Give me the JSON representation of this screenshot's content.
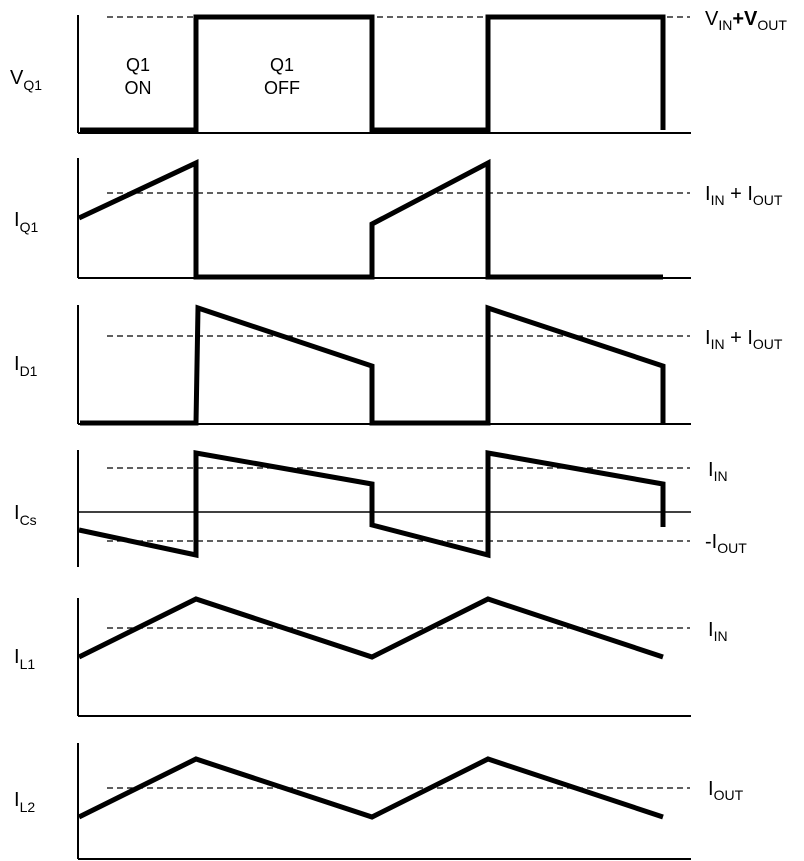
{
  "panels": [
    {
      "id": "vq1",
      "label": "V",
      "sub": "Q1",
      "ref_main": "V",
      "ref_parts": [
        [
          "IN",
          "sub"
        ],
        [
          "+V",
          "main"
        ],
        [
          "OUT",
          "sub"
        ]
      ]
    },
    {
      "id": "iq1",
      "label": "I",
      "sub": "Q1",
      "ref_parts": [
        [
          "IN",
          "sub"
        ],
        [
          " + I",
          "main"
        ],
        [
          "OUT",
          "sub"
        ]
      ]
    },
    {
      "id": "id1",
      "label": "I",
      "sub": "D1",
      "ref_parts": [
        [
          "IN",
          "sub"
        ],
        [
          " + I",
          "main"
        ],
        [
          "OUT",
          "sub"
        ]
      ]
    },
    {
      "id": "ics",
      "label": "I",
      "sub": "Cs",
      "ref_parts": [
        [
          "IN",
          "sub"
        ]
      ],
      "ref2_parts": [
        [
          "OUT",
          "sub"
        ]
      ]
    },
    {
      "id": "il1",
      "label": "I",
      "sub": "L1",
      "ref_parts": [
        [
          "IN",
          "sub"
        ]
      ]
    },
    {
      "id": "il2",
      "label": "I",
      "sub": "L2",
      "ref_parts": [
        [
          "OUT",
          "sub"
        ]
      ]
    }
  ],
  "text": {
    "vq1_main": "V",
    "vq1_sub": "Q1",
    "iq1_main": "I",
    "iq1_sub": "Q1",
    "id1_main": "I",
    "id1_sub": "D1",
    "ics_main": "I",
    "ics_sub": "Cs",
    "il1_main": "I",
    "il1_sub": "L1",
    "il2_main": "I",
    "il2_sub": "L2",
    "ref_vq1_a": "V",
    "ref_vq1_b": "IN",
    "ref_vq1_c": "+V",
    "ref_vq1_d": "OUT",
    "ref_iq1_a": "I",
    "ref_iq1_b": "IN",
    "ref_iq1_c": " + I",
    "ref_iq1_d": "OUT",
    "ref_id1_a": "I",
    "ref_id1_b": "IN",
    "ref_id1_c": " + I",
    "ref_id1_d": "OUT",
    "ref_ics_a": "I",
    "ref_ics_b": "IN",
    "ref_ics2_a": "-I",
    "ref_ics2_b": "OUT",
    "ref_il1_a": "I",
    "ref_il1_b": "IN",
    "ref_il2_a": "I",
    "ref_il2_b": "OUT",
    "q1_on_1": "Q1",
    "q1_on_2": "ON",
    "q1_off_1": "Q1",
    "q1_off_2": "OFF"
  },
  "colors": {
    "ink": "#000000",
    "background": "#ffffff"
  }
}
